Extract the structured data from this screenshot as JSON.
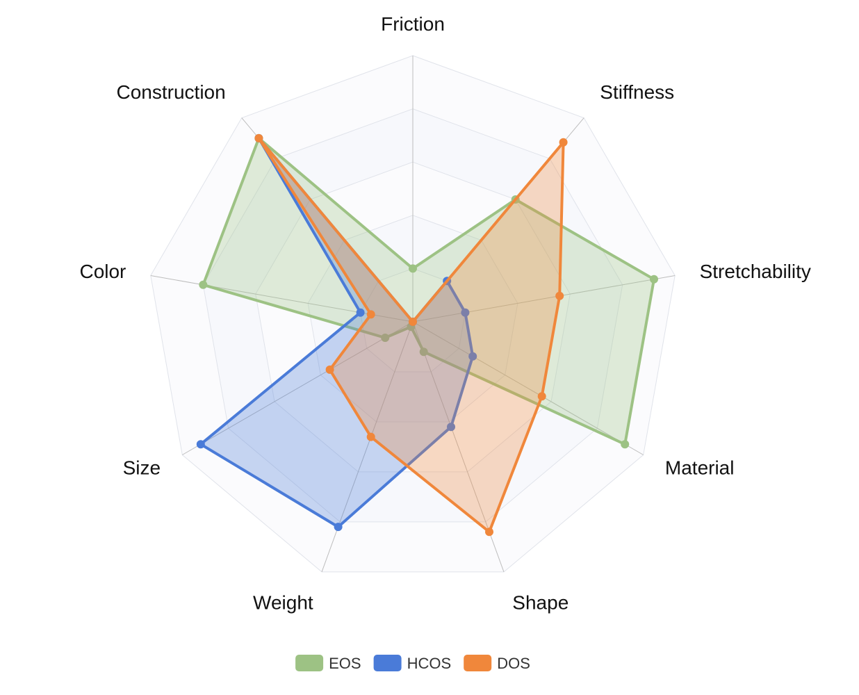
{
  "chart_data": {
    "type": "radar",
    "indicators": [
      "Friction",
      "Stiffness",
      "Stretchability",
      "Material",
      "Shape",
      "Weight",
      "Size",
      "Color",
      "Construction"
    ],
    "max": 5,
    "splitNumber": 5,
    "series": [
      {
        "name": "EOS",
        "color": "#9dc284",
        "values": [
          1.0,
          3.0,
          4.6,
          4.6,
          0.6,
          0.1,
          0.6,
          4.0,
          4.5
        ]
      },
      {
        "name": "HCOS",
        "color": "#4a7bd8",
        "values": [
          0.0,
          1.0,
          1.0,
          1.3,
          2.1,
          4.1,
          4.6,
          1.0,
          4.5
        ]
      },
      {
        "name": "DOS",
        "color": "#f0873b",
        "values": [
          0.0,
          4.4,
          2.8,
          2.8,
          4.2,
          2.3,
          1.8,
          0.8,
          4.5
        ]
      }
    ]
  }
}
